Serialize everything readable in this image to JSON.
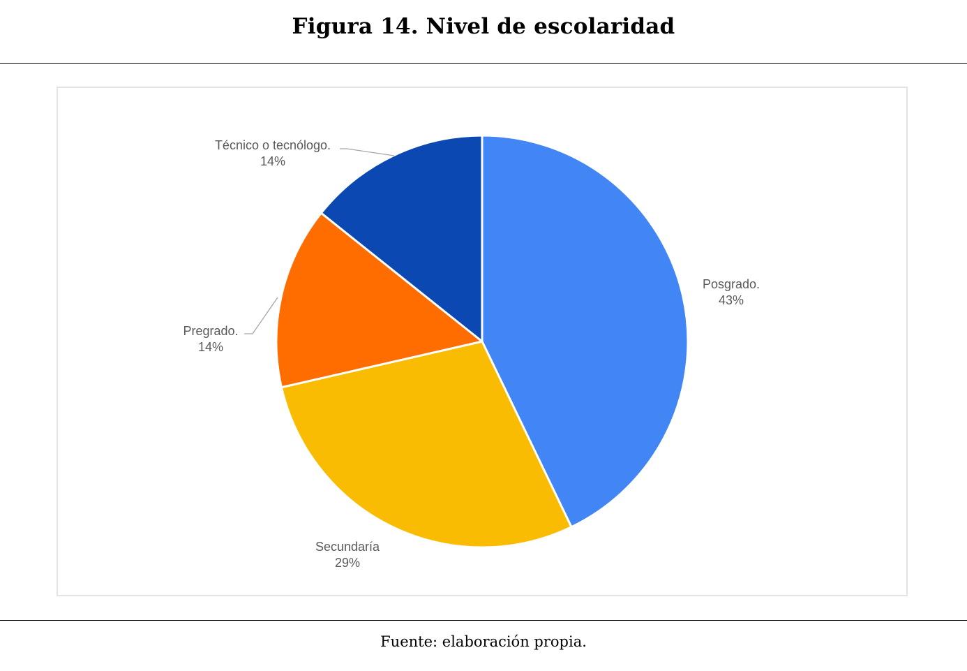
{
  "figure": {
    "title": "Figura 14. Nivel de escolaridad",
    "source": "Fuente: elaboración propia."
  },
  "chart_data": {
    "type": "pie",
    "start_angle_deg": 0,
    "direction": "clockwise",
    "legend": "none",
    "slices": [
      {
        "label": "Posgrado.",
        "percent_label": "43%",
        "value": 42.86,
        "color": "#4285f4"
      },
      {
        "label": "Secundaría",
        "percent_label": "29%",
        "value": 28.57,
        "color": "#f9bc02"
      },
      {
        "label": "Pregrado.",
        "percent_label": "14%",
        "value": 14.29,
        "color": "#ff6d01"
      },
      {
        "label": "Técnico o tecnólogo.",
        "percent_label": "14%",
        "value": 14.29,
        "color": "#0b48b1"
      }
    ]
  }
}
